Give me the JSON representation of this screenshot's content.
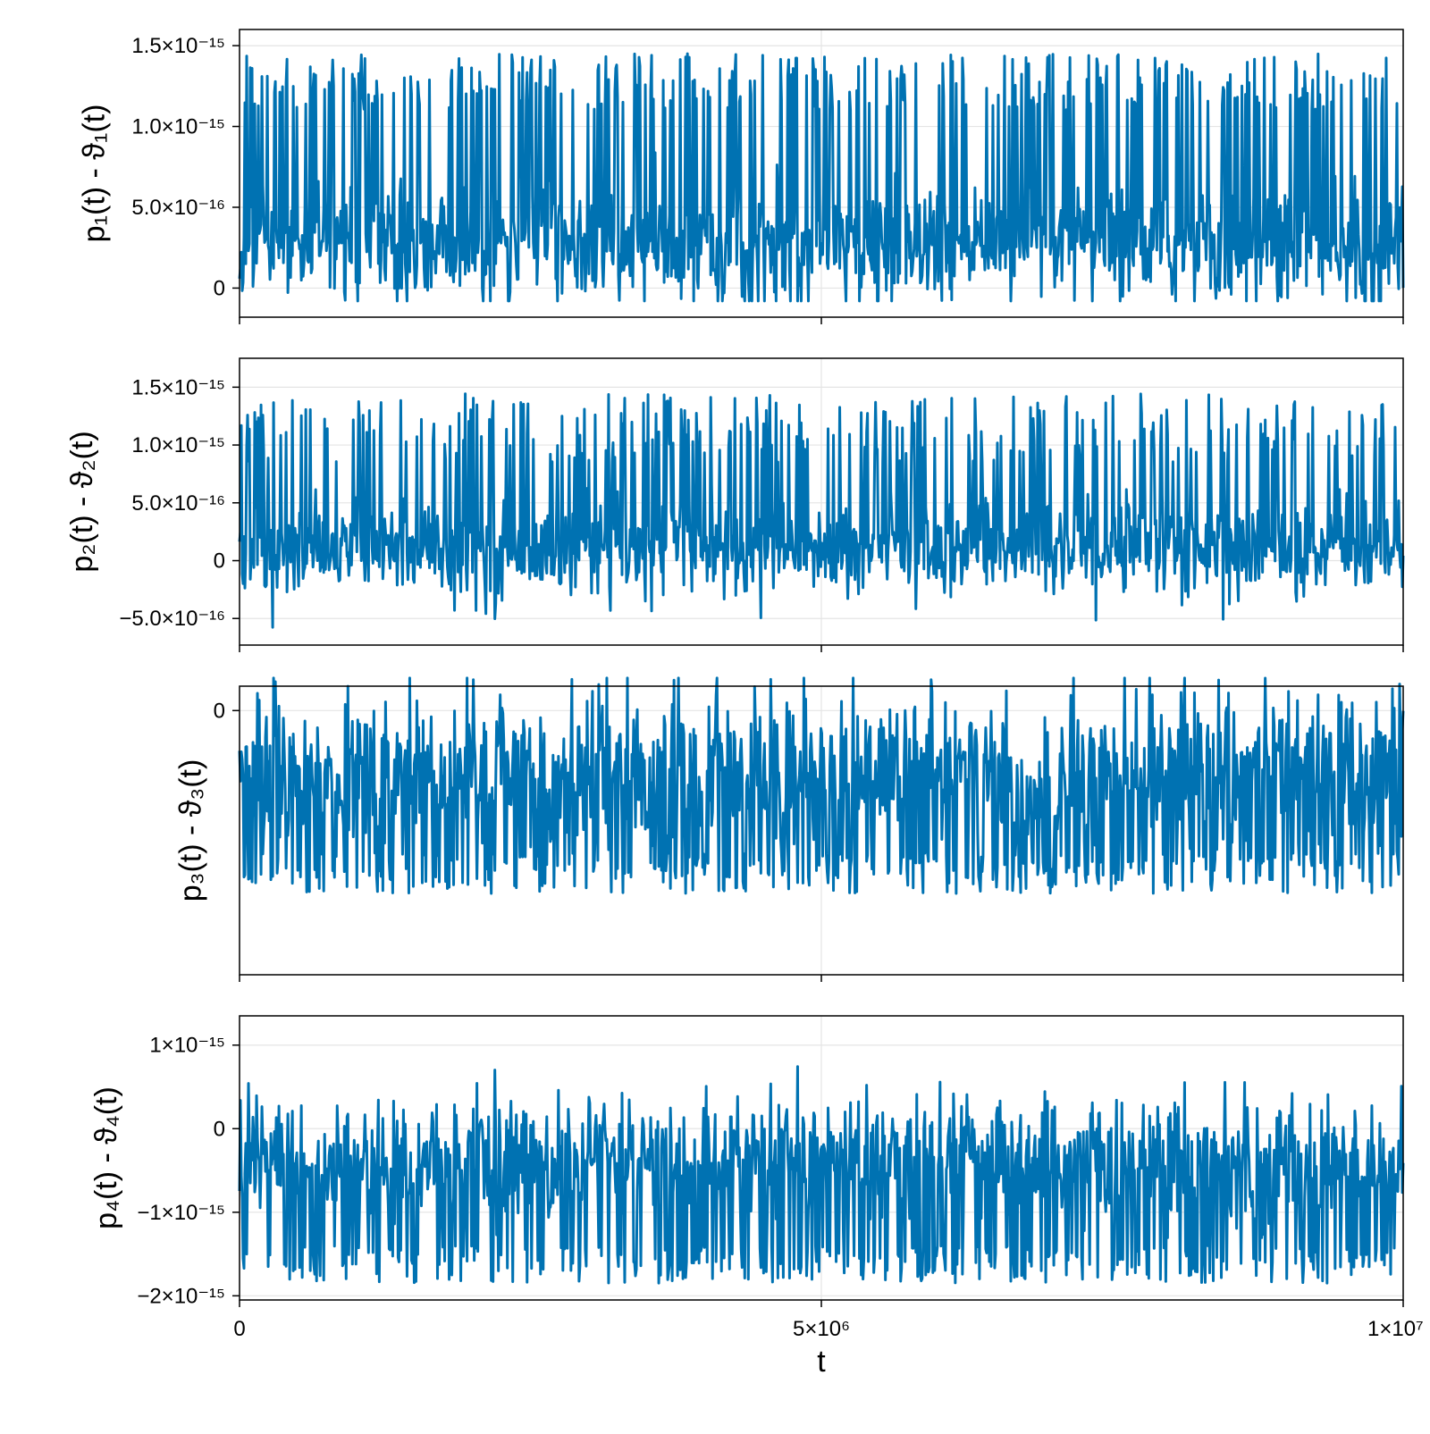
{
  "chart_data": [
    {
      "type": "line",
      "panel": 1,
      "ylabel": "p₁(t) - ϑ₁(t)",
      "xlabel": "",
      "xlim": [
        0,
        10000000
      ],
      "ylim": [
        -1.8e-16,
        1.6e-15
      ],
      "yticks": [
        {
          "value": 0,
          "label": "0"
        },
        {
          "value": 5e-16,
          "label": "5.0×10⁻¹⁶"
        },
        {
          "value": 1e-15,
          "label": "1.0×10⁻¹⁵"
        },
        {
          "value": 1.5e-15,
          "label": "1.5×10⁻¹⁵"
        }
      ],
      "xticks": [],
      "series": [
        {
          "color": "#0072b2",
          "mean": 2.5e-16,
          "spread": 2.2e-16,
          "min": -8e-17,
          "max": 1.5e-15,
          "burst_prob": 0.22,
          "burst_low": 1.1e-15,
          "burst_high": 1.45e-15
        }
      ]
    },
    {
      "type": "line",
      "panel": 2,
      "ylabel": "p₂(t) - ϑ₂(t)",
      "xlabel": "",
      "xlim": [
        0,
        10000000
      ],
      "ylim": [
        -7.3e-16,
        1.75e-15
      ],
      "yticks": [
        {
          "value": -5e-16,
          "label": "−5.0×10⁻¹⁶"
        },
        {
          "value": 0,
          "label": "0"
        },
        {
          "value": 5e-16,
          "label": "5.0×10⁻¹⁶"
        },
        {
          "value": 1e-15,
          "label": "1.0×10⁻¹⁵"
        },
        {
          "value": 1.5e-15,
          "label": "1.5×10⁻¹⁵"
        }
      ],
      "xticks": [],
      "series": [
        {
          "color": "#0072b2",
          "mean": 1e-16,
          "spread": 2.5e-16,
          "min": -6.2e-16,
          "max": 1.62e-15,
          "burst_prob": 0.2,
          "burst_low": 8.5e-16,
          "burst_high": 1.45e-15
        }
      ]
    },
    {
      "type": "line",
      "panel": 3,
      "ylabel": "p₃(t) - ϑ₃(t)",
      "xlabel": "",
      "xlim": [
        0,
        10000000
      ],
      "ylim": [
        -1.3,
        0.12
      ],
      "yticks": [
        {
          "value": 0,
          "label": "0"
        }
      ],
      "xticks": [],
      "series": [
        {
          "color": "#0072b2",
          "mean": -0.3,
          "spread": 0.25,
          "min": -1.0,
          "max": 0.16,
          "burst_prob": 0.22,
          "burst_low": -0.9,
          "burst_high": -0.7
        }
      ]
    },
    {
      "type": "line",
      "panel": 4,
      "ylabel": "p₄(t) - ϑ₄(t)",
      "xlabel": "t",
      "xlim": [
        0,
        10000000
      ],
      "ylim": [
        -2.05e-15,
        1.35e-15
      ],
      "yticks": [
        {
          "value": -2e-15,
          "label": "−2×10⁻¹⁵"
        },
        {
          "value": -1e-15,
          "label": "−1×10⁻¹⁵"
        },
        {
          "value": 0,
          "label": "0"
        },
        {
          "value": 1e-15,
          "label": "1×10⁻¹⁵"
        }
      ],
      "xticks": [
        {
          "value": 0,
          "label": "0"
        },
        {
          "value": 5000000,
          "label": "5×10⁶"
        },
        {
          "value": 10000000,
          "label": "1×10⁷"
        }
      ],
      "series": [
        {
          "color": "#0072b2",
          "mean": -3.5e-16,
          "spread": 4.5e-16,
          "min": -1.92e-15,
          "max": 1.18e-15,
          "burst_prob": 0.24,
          "burst_low": -1.85e-15,
          "burst_high": -1.4e-15
        }
      ]
    }
  ],
  "grid": true,
  "legend": "none"
}
